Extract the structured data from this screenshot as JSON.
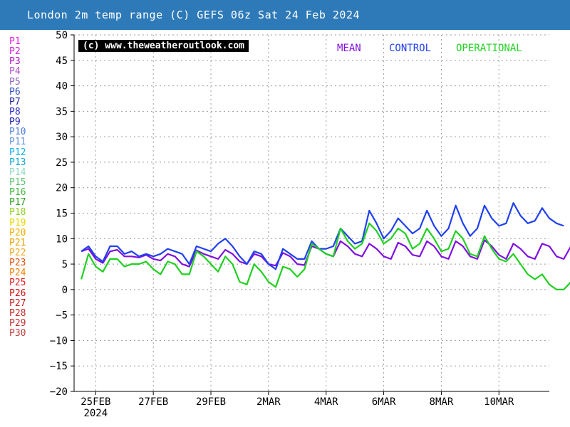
{
  "header": {
    "title": "London 2m temp range (C) GEFS 06z Sat 24 Feb 2024"
  },
  "copyright": "(c) www.theweatheroutlook.com",
  "members": [
    {
      "label": "P1",
      "color": "#e020e0"
    },
    {
      "label": "P2",
      "color": "#d020d8"
    },
    {
      "label": "P3",
      "color": "#b010c8"
    },
    {
      "label": "P4",
      "color": "#b050d0"
    },
    {
      "label": "P5",
      "color": "#9060c0"
    },
    {
      "label": "P6",
      "color": "#3050c0"
    },
    {
      "label": "P7",
      "color": "#2020a0"
    },
    {
      "label": "P8",
      "color": "#2828c8"
    },
    {
      "label": "P9",
      "color": "#1818b0"
    },
    {
      "label": "P10",
      "color": "#5080e0"
    },
    {
      "label": "P11",
      "color": "#6090d8"
    },
    {
      "label": "P12",
      "color": "#10b0e8"
    },
    {
      "label": "P13",
      "color": "#10a8d0"
    },
    {
      "label": "P14",
      "color": "#90d8c0"
    },
    {
      "label": "P15",
      "color": "#60c070"
    },
    {
      "label": "P16",
      "color": "#40b840"
    },
    {
      "label": "P17",
      "color": "#30a020"
    },
    {
      "label": "P18",
      "color": "#90d020"
    },
    {
      "label": "P19",
      "color": "#e8d800"
    },
    {
      "label": "P20",
      "color": "#f0b000"
    },
    {
      "label": "P21",
      "color": "#e8a000"
    },
    {
      "label": "P22",
      "color": "#f0a820"
    },
    {
      "label": "P23",
      "color": "#e05010"
    },
    {
      "label": "P24",
      "color": "#f08000"
    },
    {
      "label": "P25",
      "color": "#e02020"
    },
    {
      "label": "P26",
      "color": "#d01010"
    },
    {
      "label": "P27",
      "color": "#c02020"
    },
    {
      "label": "P28",
      "color": "#c82828"
    },
    {
      "label": "P29",
      "color": "#c03030"
    },
    {
      "label": "P30",
      "color": "#c04040"
    }
  ],
  "series_legend": {
    "mean": {
      "label": "MEAN",
      "color": "#8010e0"
    },
    "control": {
      "label": "CONTROL",
      "color": "#2040f0"
    },
    "operational": {
      "label": "OPERATIONAL",
      "color": "#20d020"
    }
  },
  "chart_data": {
    "type": "line",
    "title": "London 2m temp range (C) GEFS 06z Sat 24 Feb 2024",
    "ylim": [
      -20,
      50
    ],
    "y_ticks": [
      50,
      45,
      40,
      35,
      30,
      25,
      20,
      15,
      10,
      5,
      0,
      -5,
      -10,
      -15,
      -20
    ],
    "xlim": [
      0,
      16.5
    ],
    "x_ticks": [
      {
        "x": 0.75,
        "label": "25FEB",
        "sub": "2024"
      },
      {
        "x": 2.75,
        "label": "27FEB"
      },
      {
        "x": 4.75,
        "label": "29FEB"
      },
      {
        "x": 6.75,
        "label": "2MAR"
      },
      {
        "x": 8.75,
        "label": "4MAR"
      },
      {
        "x": 10.75,
        "label": "6MAR"
      },
      {
        "x": 12.75,
        "label": "8MAR"
      },
      {
        "x": 14.75,
        "label": "10MAR"
      }
    ],
    "grid": true,
    "x_step_days": 0.25,
    "series": [
      {
        "name": "MEAN",
        "values": [
          7.5,
          8.0,
          6.0,
          5.2,
          7.5,
          7.8,
          6.5,
          6.5,
          6.3,
          6.8,
          6.0,
          5.7,
          7.0,
          6.5,
          5.0,
          4.5,
          7.7,
          7.0,
          6.5,
          6.0,
          7.8,
          7.0,
          5.5,
          5.0,
          7.0,
          6.5,
          5.0,
          4.7,
          7.2,
          6.5,
          5.0,
          4.8,
          8.5,
          8.0,
          7.0,
          6.5,
          9.5,
          8.5,
          7.0,
          6.5,
          9.0,
          8.0,
          6.5,
          6.0,
          9.2,
          8.5,
          6.8,
          6.5,
          9.5,
          8.5,
          6.5,
          6.0,
          9.5,
          8.5,
          6.5,
          6.0,
          9.7,
          8.5,
          6.8,
          6.0,
          9.0,
          8.0,
          6.5,
          6.0,
          9.0,
          8.5,
          6.5,
          6.0,
          8.5,
          8.0,
          6.0
        ]
      },
      {
        "name": "CONTROL",
        "values": [
          7.5,
          8.5,
          6.5,
          5.5,
          8.5,
          8.5,
          7.0,
          7.5,
          6.5,
          7.0,
          6.5,
          7.0,
          8.0,
          7.5,
          7.0,
          5.0,
          8.5,
          8.0,
          7.5,
          9.0,
          10.0,
          8.5,
          6.5,
          5.0,
          7.5,
          7.0,
          5.0,
          4.0,
          8.0,
          7.0,
          6.0,
          6.0,
          9.5,
          8.0,
          8.0,
          8.5,
          12.0,
          10.5,
          9.0,
          9.5,
          15.5,
          13.0,
          10.0,
          11.5,
          14.0,
          12.5,
          11.0,
          12.0,
          15.5,
          12.5,
          10.5,
          12.0,
          16.5,
          13.0,
          10.5,
          12.0,
          16.5,
          14.0,
          12.5,
          13.0,
          17.0,
          14.5,
          13.0,
          13.5,
          16.0,
          14.0,
          13.0,
          12.5
        ]
      },
      {
        "name": "OPERATIONAL",
        "values": [
          2.0,
          7.0,
          4.5,
          3.5,
          6.0,
          6.0,
          4.5,
          5.0,
          5.0,
          5.5,
          4.0,
          3.0,
          5.5,
          5.0,
          3.0,
          3.0,
          7.5,
          6.5,
          5.0,
          3.5,
          6.5,
          5.0,
          1.5,
          1.0,
          5.0,
          3.5,
          1.5,
          0.5,
          4.5,
          4.0,
          2.5,
          4.0,
          9.0,
          8.0,
          7.0,
          6.5,
          12.0,
          9.5,
          8.0,
          9.0,
          13.0,
          11.5,
          9.0,
          10.0,
          12.0,
          11.0,
          8.0,
          9.0,
          12.0,
          10.0,
          7.5,
          8.0,
          11.5,
          10.0,
          7.0,
          6.5,
          10.5,
          8.0,
          6.0,
          5.5,
          7.0,
          5.0,
          3.0,
          2.0,
          3.0,
          1.0,
          0.0,
          0.0,
          1.5,
          -1.0,
          -1.5
        ]
      }
    ]
  }
}
